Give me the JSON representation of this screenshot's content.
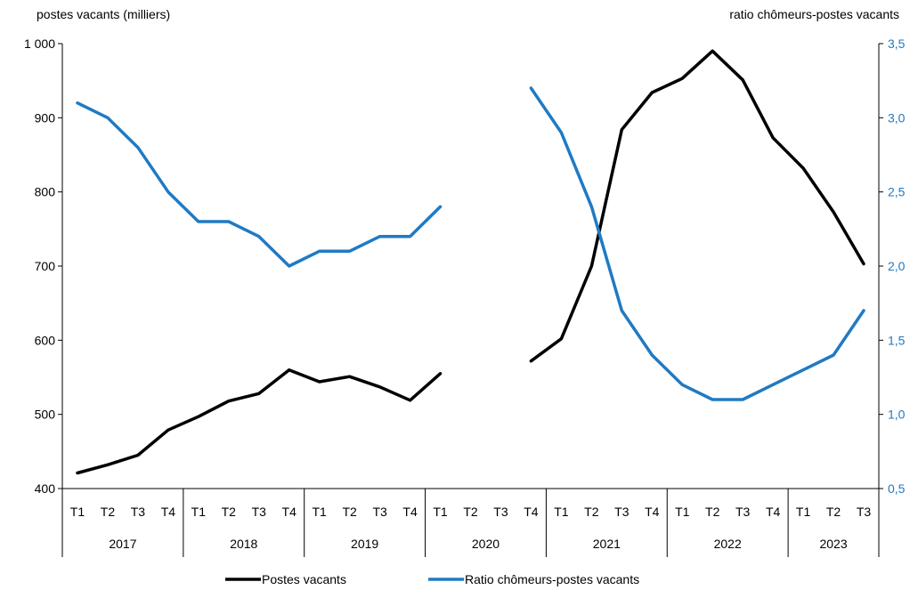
{
  "chart_data": {
    "type": "line",
    "left_axis": {
      "label": "postes vacants (milliers)",
      "min": 400,
      "max": 1000,
      "step": 100,
      "tick_labels": [
        "400",
        "500",
        "600",
        "700",
        "800",
        "900",
        "1 000"
      ]
    },
    "right_axis": {
      "label": "ratio chômeurs-postes vacants",
      "min": 0.5,
      "max": 3.5,
      "step": 0.5,
      "tick_labels": [
        "0,5",
        "1,0",
        "1,5",
        "2,0",
        "2,5",
        "3,0",
        "3,5"
      ]
    },
    "quarters": [
      "T1",
      "T2",
      "T3",
      "T4",
      "T1",
      "T2",
      "T3",
      "T4",
      "T1",
      "T2",
      "T3",
      "T4",
      "T1",
      "T2",
      "T3",
      "T4",
      "T1",
      "T2",
      "T3",
      "T4",
      "T1",
      "T2",
      "T3",
      "T4",
      "T1",
      "T2",
      "T3"
    ],
    "years": [
      {
        "label": "2017",
        "count": 4
      },
      {
        "label": "2018",
        "count": 4
      },
      {
        "label": "2019",
        "count": 4
      },
      {
        "label": "2020",
        "count": 4
      },
      {
        "label": "2021",
        "count": 4
      },
      {
        "label": "2022",
        "count": 4
      },
      {
        "label": "2023",
        "count": 3
      }
    ],
    "series": [
      {
        "name": "Postes vacants",
        "axis": "left",
        "color": "#000000",
        "values": [
          421,
          432,
          445,
          479,
          497,
          518,
          528,
          560,
          544,
          551,
          537,
          519,
          555,
          null,
          null,
          572,
          602,
          700,
          884,
          934,
          953,
          990,
          951,
          873,
          832,
          773,
          703
        ]
      },
      {
        "name": "Ratio chômeurs-postes vacants",
        "axis": "right",
        "color": "#1f7ac4",
        "values": [
          3.1,
          3.0,
          2.8,
          2.5,
          2.3,
          2.3,
          2.2,
          2.0,
          2.1,
          2.1,
          2.2,
          2.2,
          2.4,
          null,
          null,
          3.2,
          2.9,
          2.4,
          1.7,
          1.4,
          1.2,
          1.1,
          1.1,
          1.2,
          1.3,
          1.4,
          1.7
        ]
      }
    ],
    "legend_position": "bottom-center",
    "grid": false
  }
}
